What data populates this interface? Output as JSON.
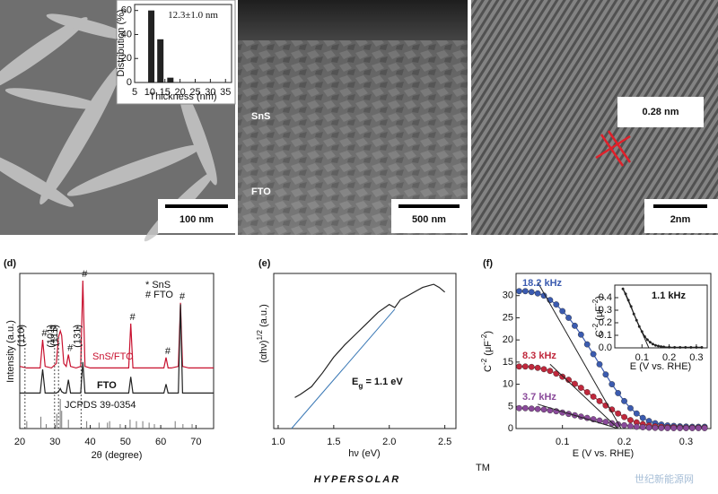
{
  "panels": {
    "a": {
      "scale_bar": "100 nm"
    },
    "b": {
      "scale_bar": "500 nm",
      "labels": [
        "SnS",
        "FTO"
      ]
    },
    "c": {
      "scale_bar": "2nm",
      "annotation": "0.28 nm"
    }
  },
  "logo": {
    "text": "HYPERSOLAR",
    "mark": "TM"
  },
  "watermark": "世纪新能源网",
  "chart_data": [
    {
      "type": "bar",
      "annotation": "12.3±1.0 nm",
      "xlabel": "Thickness (nm)",
      "ylabel": "Distribution (%)",
      "x": [
        10.5,
        13.5,
        16.8
      ],
      "values": [
        60,
        36,
        4
      ],
      "color": "#222222",
      "xlim": [
        5,
        37
      ],
      "xticks": [
        5,
        10,
        15,
        20,
        25,
        30,
        35
      ],
      "ylim": [
        0,
        65
      ],
      "yticks": [
        0,
        20,
        40,
        60
      ]
    },
    {
      "type": "line",
      "panel": "(d)",
      "xlabel": "2θ (degree)",
      "ylabel": "Intensity (a.u.)",
      "xlim": [
        20,
        75
      ],
      "xticks": [
        20,
        30,
        40,
        50,
        60,
        70
      ],
      "ylim": [
        0,
        100
      ],
      "x": [
        20,
        22,
        24,
        25.8,
        26.5,
        27.2,
        29,
        30.4,
        31,
        31.5,
        31.9,
        32.5,
        33.2,
        33.8,
        34.4,
        36,
        37.3,
        37.9,
        38.5,
        40,
        45,
        50.9,
        51.5,
        52.1,
        54,
        56,
        60.9,
        61.5,
        62.1,
        63,
        65,
        65.6,
        66.2,
        68,
        70,
        75
      ],
      "series": [
        {
          "name": "SnS/FTO",
          "color": "#c8102e",
          "values": [
            42,
            41,
            41,
            41,
            60,
            42,
            41,
            44,
            62,
            66,
            63,
            44,
            42,
            50,
            42,
            41,
            42,
            100,
            42,
            41,
            41,
            41,
            71,
            41,
            41,
            41,
            41,
            48,
            41,
            41,
            42,
            85,
            42,
            41,
            41,
            41
          ]
        },
        {
          "name": "FTO",
          "color": "#222222",
          "values": [
            24,
            24,
            24,
            24,
            40,
            24,
            24,
            24,
            25,
            27,
            25,
            24,
            24,
            33,
            24,
            24,
            24,
            45,
            24,
            24,
            24,
            24,
            35,
            24,
            24,
            24,
            24,
            30,
            24,
            24,
            24,
            84,
            24,
            24,
            24,
            24
          ]
        }
      ],
      "reference": {
        "name": "JCPDS 39-0354",
        "color": "#777777",
        "x": [
          22,
          26,
          27.5,
          30.5,
          31.5,
          31.9,
          33.8,
          39,
          42.5,
          44.9,
          45.5,
          48.5,
          51.3,
          53.1,
          54.9,
          56.7,
          58.2,
          64.1,
          66.3,
          68.9
        ],
        "values": [
          5,
          8,
          3,
          10,
          20,
          12,
          6,
          5,
          4,
          4,
          5,
          3,
          6,
          5,
          5,
          4,
          3,
          5,
          3,
          3
        ]
      },
      "legend": [
        "* SnS",
        "# FTO"
      ],
      "sns_mark": "*",
      "planes": [
        {
          "label": "(110)",
          "x": 22
        },
        {
          "label": "(101)",
          "x": 30.4
        },
        {
          "label": "(111)",
          "x": 31.5
        },
        {
          "label": "(131)",
          "x": 37.9
        }
      ],
      "fto_peaks": {
        "label": "#",
        "x": [
          26.5,
          33.8,
          37.9,
          51.5,
          61.5,
          65.6
        ]
      }
    },
    {
      "type": "line",
      "panel": "(e)",
      "xlabel": "hν (eV)",
      "ylabel": {
        "base": "(αhν)",
        "exp": "1/2",
        "unit": " (a.u.)"
      },
      "annotation": {
        "base": "E",
        "sub": "g",
        "rest": " = 1.1 eV"
      },
      "xlim": [
        0.96,
        2.6
      ],
      "xticks": [
        {
          "value": 1,
          "label": "1.0"
        },
        1.5,
        {
          "value": 2,
          "label": "2.0"
        },
        2.5
      ],
      "ylim": [
        0,
        100
      ],
      "x": [
        1.15,
        1.2,
        1.3,
        1.4,
        1.5,
        1.6,
        1.7,
        1.8,
        1.9,
        2.0,
        2.05,
        2.1,
        2.15,
        2.2,
        2.25,
        2.3,
        2.35,
        2.4,
        2.45,
        2.5
      ],
      "values": [
        20,
        22,
        27,
        36,
        46,
        54,
        61,
        68,
        75,
        80,
        78,
        83,
        85,
        87,
        89,
        91,
        92,
        93,
        91,
        88
      ],
      "color": "#222222",
      "fits": [
        {
          "x": [
            1.12,
            2.05
          ],
          "values": [
            0,
            77
          ],
          "color": "#3a78b5"
        }
      ]
    },
    {
      "type": "line",
      "panel": "(f)",
      "markers": true,
      "xlabel": "E (V vs. RHE)",
      "ylabel": {
        "base": "C",
        "exp": "-2",
        "unit": " (μF",
        "unit_exp": "-2",
        "close": ")"
      },
      "xlim": [
        0.025,
        0.34
      ],
      "xticks": [
        0.1,
        0.2,
        0.3
      ],
      "ylim": [
        0,
        35
      ],
      "yticks": [
        0,
        5,
        10,
        15,
        20,
        25,
        30
      ],
      "x": [
        0.03,
        0.04,
        0.05,
        0.06,
        0.07,
        0.08,
        0.09,
        0.1,
        0.11,
        0.12,
        0.13,
        0.14,
        0.15,
        0.16,
        0.17,
        0.18,
        0.19,
        0.2,
        0.21,
        0.22,
        0.23,
        0.24,
        0.25,
        0.26,
        0.27,
        0.28,
        0.29,
        0.3,
        0.31,
        0.32,
        0.33
      ],
      "series": [
        {
          "name": "18.2 kHz",
          "color": "#3b5bb0",
          "values": [
            31,
            31,
            30.8,
            30.5,
            30,
            29,
            28,
            26.5,
            25,
            23.2,
            21.2,
            19,
            16.8,
            14.5,
            12.2,
            10,
            8,
            6.2,
            4.6,
            3.4,
            2.4,
            1.7,
            1.2,
            0.9,
            0.7,
            0.6,
            0.5,
            0.45,
            0.4,
            0.4,
            0.4
          ]
        },
        {
          "name": "8.3 kHz",
          "color": "#c0283c",
          "values": [
            14,
            14,
            13.9,
            13.7,
            13.4,
            13,
            12.4,
            11.7,
            11,
            10.1,
            9.2,
            8.2,
            7.2,
            6.2,
            5.2,
            4.3,
            3.4,
            2.6,
            1.9,
            1.4,
            1,
            0.7,
            0.5,
            0.4,
            0.3,
            0.3,
            0.25,
            0.2,
            0.2,
            0.2,
            0.2
          ]
        },
        {
          "name": "3.7 kHz",
          "color": "#8a4a9a",
          "values": [
            4.6,
            4.6,
            4.5,
            4.4,
            4.3,
            4.1,
            3.9,
            3.6,
            3.3,
            3,
            2.7,
            2.4,
            2.1,
            1.8,
            1.5,
            1.2,
            0.95,
            0.75,
            0.55,
            0.4,
            0.3,
            0.2,
            0.15,
            0.12,
            0.1,
            0.1,
            0.1,
            0.1,
            0.1,
            0.1,
            0.1
          ]
        }
      ],
      "fits": [
        {
          "x": [
            0.06,
            0.195
          ],
          "values": [
            33,
            0
          ],
          "color": "#222222"
        },
        {
          "x": [
            0.08,
            0.19
          ],
          "values": [
            14.5,
            0
          ],
          "color": "#222222"
        },
        {
          "x": [
            0.06,
            0.19
          ],
          "values": [
            5.5,
            0
          ],
          "color": "#222222"
        }
      ],
      "inset": {
        "type": "line",
        "markers": true,
        "annotation": "1.1 kHz",
        "xlabel": "E (V vs. RHE)",
        "ylabel": {
          "base": "C",
          "exp": "-2",
          "unit": " (μF",
          "unit_exp": "-2",
          "close": ")"
        },
        "xlim": [
          0,
          0.34
        ],
        "xticks": [
          0.1,
          0.2,
          0.3
        ],
        "ylim": [
          0,
          0.5
        ],
        "yticks": [
          {
            "value": 0,
            "label": "0.0"
          },
          0.1,
          0.2,
          0.3,
          0.4
        ],
        "x": [
          0.03,
          0.04,
          0.05,
          0.06,
          0.07,
          0.08,
          0.09,
          0.1,
          0.11,
          0.12,
          0.13,
          0.14,
          0.15,
          0.16,
          0.17,
          0.18,
          0.2,
          0.22,
          0.24,
          0.26,
          0.28,
          0.3,
          0.32
        ],
        "values": [
          0.47,
          0.43,
          0.38,
          0.33,
          0.27,
          0.22,
          0.17,
          0.13,
          0.09,
          0.065,
          0.045,
          0.03,
          0.02,
          0.015,
          0.01,
          0.008,
          0.005,
          0.004,
          0.004,
          0.004,
          0.004,
          0.004,
          0.004
        ],
        "color": "#222222",
        "fits": [
          {
            "x": [
              0.03,
              0.125
            ],
            "values": [
              0.47,
              0
            ],
            "color": "#222222"
          }
        ]
      }
    }
  ]
}
